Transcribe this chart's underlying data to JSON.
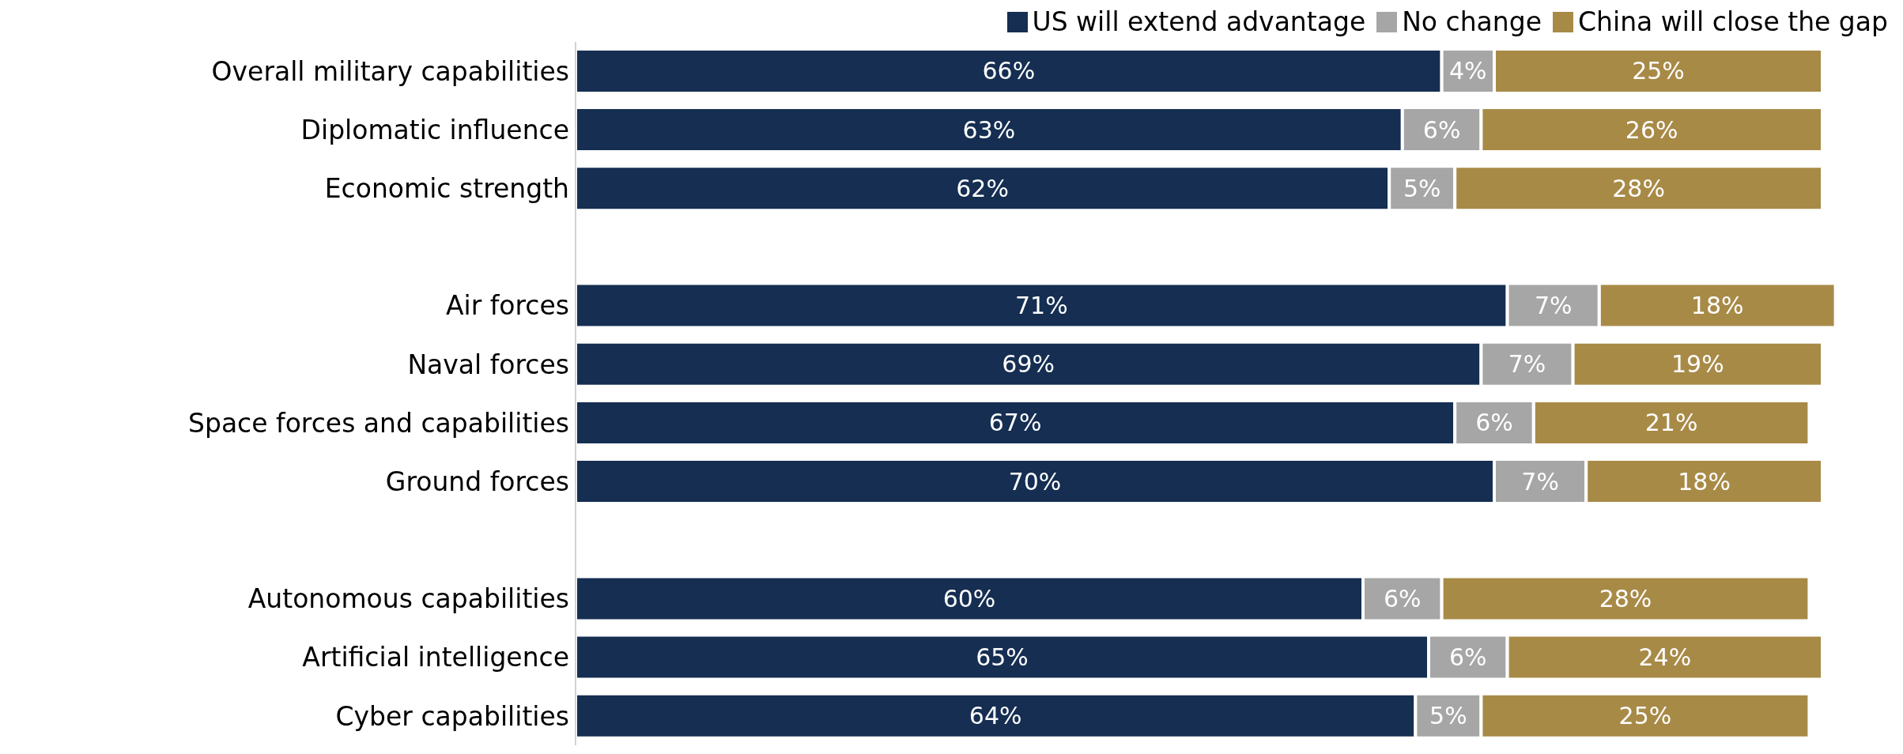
{
  "chart_data": {
    "type": "bar",
    "orientation": "horizontal",
    "stacked": true,
    "legend": "top right",
    "categories": [
      "Overall military capabilities",
      "Diplomatic influence",
      "Economic strength",
      null,
      "Air forces",
      "Naval forces",
      "Space forces and capabilities",
      "Ground forces",
      null,
      "Autonomous capabilities",
      "Artificial intelligence",
      "Cyber capabilities"
    ],
    "series": [
      {
        "name": "US will extend advantage",
        "color": "#152e52",
        "values": [
          66,
          63,
          62,
          null,
          71,
          69,
          67,
          70,
          null,
          60,
          65,
          64
        ],
        "value_labels": [
          "66%",
          "63%",
          "62%",
          null,
          "71%",
          "69%",
          "67%",
          "70%",
          null,
          "60%",
          "65%",
          "64%"
        ]
      },
      {
        "name": "No change",
        "color": "#a6a6a6",
        "values": [
          4,
          6,
          5,
          null,
          7,
          7,
          6,
          7,
          null,
          6,
          6,
          5
        ],
        "value_labels": [
          "4%",
          "6%",
          "5%",
          null,
          "7%",
          "7%",
          "6%",
          "7%",
          null,
          "6%",
          "6%",
          "5%"
        ]
      },
      {
        "name": "China will close the gap",
        "color": "#a88a47",
        "values": [
          25,
          26,
          28,
          null,
          18,
          19,
          21,
          18,
          null,
          28,
          24,
          25
        ],
        "value_labels": [
          "25%",
          "26%",
          "28%",
          null,
          "18%",
          "19%",
          "21%",
          "18%",
          null,
          "28%",
          "24%",
          "25%"
        ]
      }
    ]
  }
}
